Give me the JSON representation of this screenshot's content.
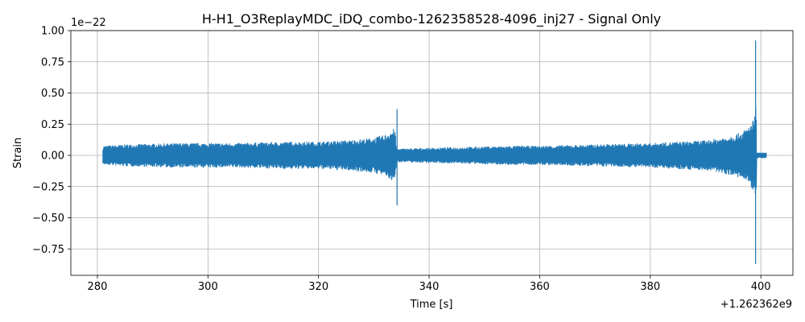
{
  "chart_data": {
    "type": "line",
    "title": "H-H1_O3ReplayMDC_iDQ_combo-1262358528-4096_inj27 - Signal Only",
    "xlabel": "Time [s]",
    "ylabel": "Strain",
    "x_offset_label": "+1.262362e9",
    "y_scale_label": "1e−22",
    "xlim": [
      275.2,
      405.8
    ],
    "ylim": [
      -1.9,
      1.0
    ],
    "x_ticks": [
      280,
      300,
      320,
      340,
      360,
      380,
      400
    ],
    "x_tick_labels": [
      "280",
      "300",
      "320",
      "340",
      "360",
      "380",
      "400"
    ],
    "y_ticks": [
      1.0,
      0.75,
      0.5,
      0.25,
      0.0,
      -0.25,
      -0.5,
      -0.75
    ],
    "y_tick_labels": [
      "1.00",
      "0.75",
      "0.50",
      "0.25",
      "0.00",
      "−0.25",
      "−0.50",
      "−0.75"
    ],
    "grid": true,
    "series": [
      {
        "color": "#1f77b4",
        "envelope": {
          "x": [
            281.0,
            281.2,
            285,
            290,
            295,
            300,
            305,
            310,
            315,
            320,
            325,
            328,
            330,
            332,
            333,
            333.8,
            334.1,
            334.3,
            334.6,
            335,
            340,
            345,
            350,
            355,
            360,
            365,
            370,
            375,
            380,
            385,
            390,
            393,
            395,
            396.5,
            397.5,
            398.2,
            398.7,
            399.0,
            399.15,
            399.25,
            399.5,
            400.0,
            401.0
          ],
          "upper": [
            0.06,
            0.07,
            0.08,
            0.085,
            0.09,
            0.09,
            0.09,
            0.095,
            0.1,
            0.1,
            0.11,
            0.12,
            0.13,
            0.15,
            0.18,
            0.2,
            0.05,
            0.05,
            0.05,
            0.05,
            0.055,
            0.06,
            0.065,
            0.07,
            0.07,
            0.075,
            0.08,
            0.085,
            0.09,
            0.1,
            0.11,
            0.13,
            0.15,
            0.17,
            0.2,
            0.23,
            0.27,
            0.3,
            0.4,
            0.025,
            0.02,
            0.02,
            0.02
          ],
          "lower": [
            -0.06,
            -0.07,
            -0.08,
            -0.085,
            -0.09,
            -0.09,
            -0.09,
            -0.095,
            -0.1,
            -0.1,
            -0.11,
            -0.12,
            -0.13,
            -0.15,
            -0.18,
            -0.2,
            -0.05,
            -0.05,
            -0.05,
            -0.05,
            -0.055,
            -0.06,
            -0.065,
            -0.07,
            -0.07,
            -0.075,
            -0.08,
            -0.085,
            -0.09,
            -0.1,
            -0.11,
            -0.13,
            -0.15,
            -0.17,
            -0.2,
            -0.23,
            -0.27,
            -0.3,
            -0.4,
            -0.025,
            -0.02,
            -0.02,
            -0.02
          ]
        },
        "spikes": [
          {
            "x": 334.2,
            "upper": 0.37,
            "lower": -0.4
          },
          {
            "x": 399.05,
            "upper": 0.92,
            "lower": -0.87
          }
        ]
      }
    ]
  }
}
